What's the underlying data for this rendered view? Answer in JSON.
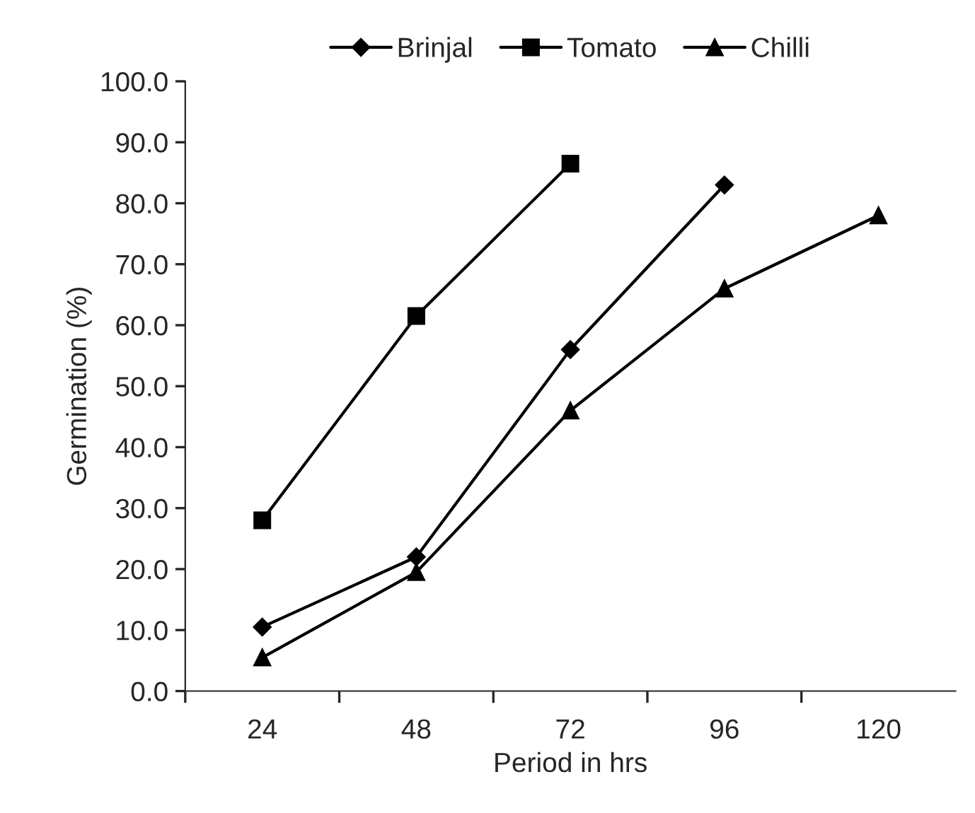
{
  "chart_data": {
    "type": "line",
    "xlabel": "Period in hrs",
    "ylabel": "Germination (%)",
    "categories": [
      "24",
      "48",
      "72",
      "96",
      "120"
    ],
    "series": [
      {
        "name": "Brinjal",
        "color": "#000000",
        "marker": "diamond",
        "values": [
          10.5,
          22,
          56,
          83,
          null
        ]
      },
      {
        "name": "Tomato",
        "color": "#000000",
        "marker": "square",
        "values": [
          28,
          61.5,
          86.5,
          null,
          null
        ]
      },
      {
        "name": "Chilli",
        "color": "#000000",
        "marker": "triangle",
        "values": [
          5.5,
          19.5,
          46,
          66,
          78
        ]
      }
    ],
    "ylim": [
      0,
      100
    ],
    "yticks": [
      {
        "value": 0,
        "label": "0.0"
      },
      {
        "value": 10,
        "label": "10.0"
      },
      {
        "value": 20,
        "label": "20.0"
      },
      {
        "value": 30,
        "label": "30.0"
      },
      {
        "value": 40,
        "label": "40.0"
      },
      {
        "value": 50,
        "label": "50.0"
      },
      {
        "value": 60,
        "label": "60.0"
      },
      {
        "value": 70,
        "label": "70.0"
      },
      {
        "value": 80,
        "label": "80.0"
      },
      {
        "value": 90,
        "label": "90.0"
      },
      {
        "value": 100,
        "label": "100.0"
      }
    ],
    "legend": "top",
    "grid": false,
    "line_style": "solid"
  }
}
